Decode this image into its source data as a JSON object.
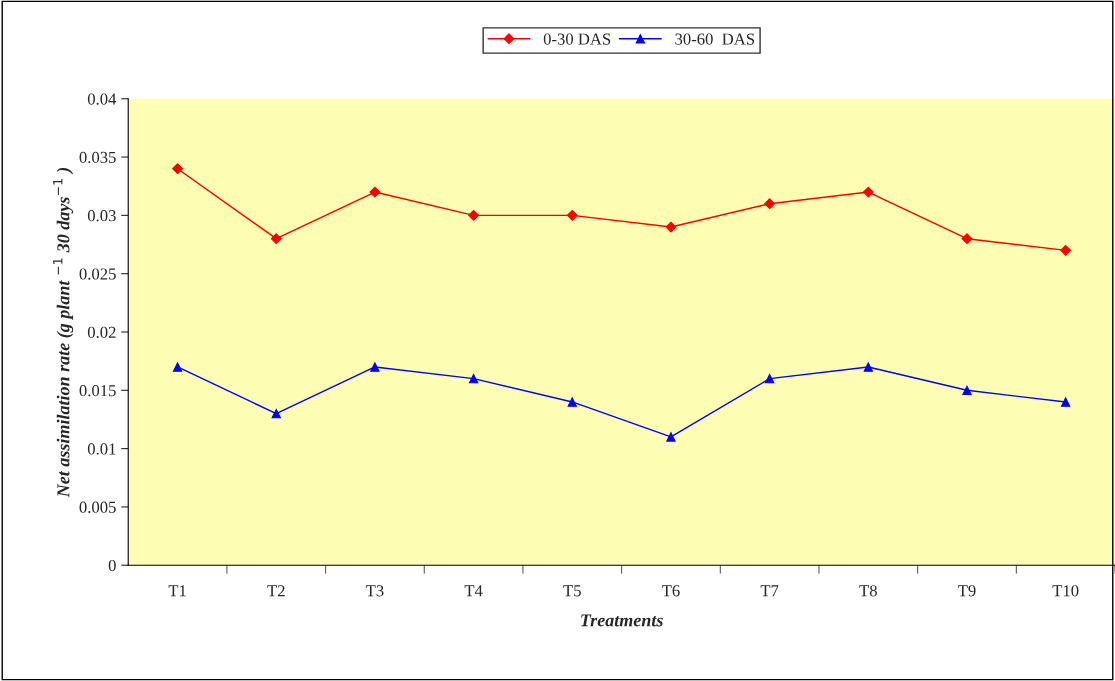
{
  "chart_data": {
    "type": "line",
    "xlabel": "Treatments",
    "ylabel": "Net assimilation rate (g plant $^{−1}$ 30 days$^{−1}$ )",
    "categories": [
      "T1",
      "T2",
      "T3",
      "T4",
      "T5",
      "T6",
      "T7",
      "T8",
      "T9",
      "T10"
    ],
    "series": [
      {
        "name": "0-30 DAS",
        "color": "#ff0000",
        "marker": "diamond",
        "values": [
          0.034,
          0.028,
          0.032,
          0.03,
          0.03,
          0.029,
          0.031,
          0.032,
          0.028,
          0.027
        ]
      },
      {
        "name": "30-60  DAS",
        "color": "#0000ff",
        "marker": "triangle",
        "values": [
          0.017,
          0.013,
          0.017,
          0.016,
          0.014,
          0.011,
          0.016,
          0.017,
          0.015,
          0.014
        ]
      }
    ],
    "ylim": [
      0,
      0.04
    ],
    "yticks": [
      0,
      0.005,
      0.01,
      0.015,
      0.02,
      0.025,
      0.03,
      0.035,
      0.04
    ],
    "grid": false,
    "legend": "top"
  }
}
